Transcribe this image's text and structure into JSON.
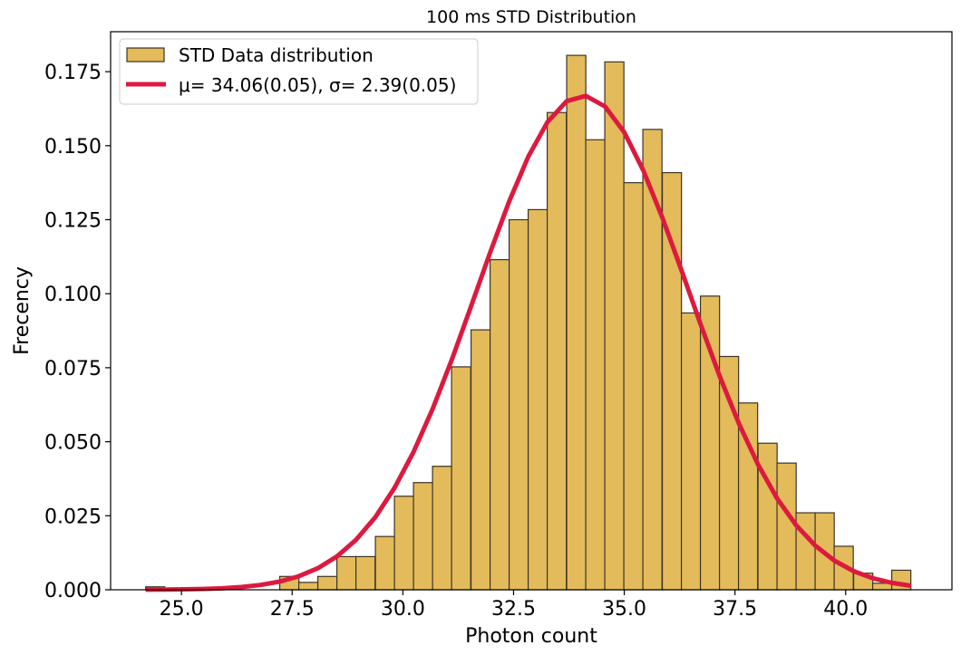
{
  "chart_data": {
    "type": "bar",
    "title": "100 ms STD Distribution",
    "xlabel": "Photon count",
    "ylabel": "Frecency",
    "xlim": [
      23.4,
      42.4
    ],
    "ylim": [
      0.0,
      0.1885
    ],
    "x_ticks": [
      "25.0",
      "27.5",
      "30.0",
      "32.5",
      "35.0",
      "37.5",
      "40.0"
    ],
    "y_ticks": [
      "0.000",
      "0.025",
      "0.050",
      "0.075",
      "0.100",
      "0.125",
      "0.150",
      "0.175"
    ],
    "bin_width": 0.432,
    "bin_starts": [
      24.19,
      24.62,
      25.05,
      25.49,
      25.92,
      26.35,
      26.78,
      27.22,
      27.65,
      28.08,
      28.51,
      28.94,
      29.38,
      29.81,
      30.24,
      30.67,
      31.1,
      31.54,
      31.97,
      32.4,
      32.83,
      33.26,
      33.7,
      34.13,
      34.56,
      34.99,
      35.42,
      35.86,
      36.29,
      36.72,
      37.15,
      37.58,
      38.02,
      38.45,
      38.88,
      39.31,
      39.74,
      40.18,
      40.61,
      41.04
    ],
    "values": [
      0.001,
      0.0,
      0.0,
      0.0,
      0.0,
      0.0,
      0.0,
      0.0045,
      0.0025,
      0.0045,
      0.0112,
      0.0112,
      0.018,
      0.0316,
      0.0362,
      0.0417,
      0.0753,
      0.0878,
      0.1115,
      0.125,
      0.1284,
      0.1612,
      0.1805,
      0.152,
      0.1783,
      0.1375,
      0.1555,
      0.1409,
      0.0935,
      0.0992,
      0.0788,
      0.0631,
      0.0495,
      0.0428,
      0.026,
      0.026,
      0.0147,
      0.0056,
      0.0022,
      0.0066
    ],
    "series": [
      {
        "name": "STD Data distribution",
        "kind": "histogram",
        "color": "#e3bb5a",
        "edgecolor": "#3b3326"
      },
      {
        "name": "μ= 34.06(0.05), σ= 2.39(0.05)",
        "kind": "line",
        "color": "#dc1a3f",
        "mu": 34.06,
        "sigma": 2.39,
        "x_range": [
          24.19,
          41.48
        ]
      }
    ],
    "legend_position": "upper-left",
    "grid": false
  }
}
